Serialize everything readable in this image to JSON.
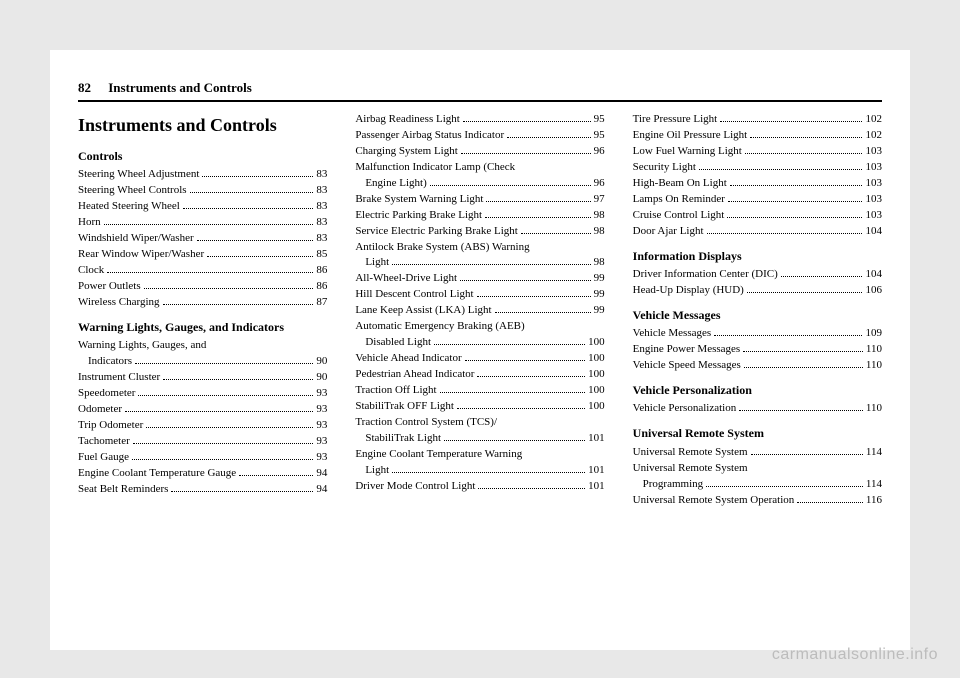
{
  "header": {
    "page_num": "82",
    "running_title": "Instruments and Controls"
  },
  "chapter_title": "Instruments and Controls",
  "watermark": "carmanualsonline.info",
  "sections": [
    {
      "heading": "Controls",
      "entries": [
        {
          "label": "Steering Wheel Adjustment",
          "page": "83",
          "indent": 0
        },
        {
          "label": "Steering Wheel Controls",
          "page": "83",
          "indent": 0
        },
        {
          "label": "Heated Steering Wheel",
          "page": "83",
          "indent": 0
        },
        {
          "label": "Horn",
          "page": "83",
          "indent": 0
        },
        {
          "label": "Windshield Wiper/Washer",
          "page": "83",
          "indent": 0
        },
        {
          "label": "Rear Window Wiper/Washer",
          "page": "85",
          "indent": 0
        },
        {
          "label": "Clock",
          "page": "86",
          "indent": 0
        },
        {
          "label": "Power Outlets",
          "page": "86",
          "indent": 0
        },
        {
          "label": "Wireless Charging",
          "page": "87",
          "indent": 0
        }
      ]
    },
    {
      "heading": "Warning Lights, Gauges, and Indicators",
      "entries": [
        {
          "label": "Warning Lights, Gauges, and",
          "page": "",
          "indent": 0,
          "nodots": true
        },
        {
          "label": "Indicators",
          "page": "90",
          "indent": 1
        },
        {
          "label": "Instrument Cluster",
          "page": "90",
          "indent": 0
        },
        {
          "label": "Speedometer",
          "page": "93",
          "indent": 0
        },
        {
          "label": "Odometer",
          "page": "93",
          "indent": 0
        },
        {
          "label": "Trip Odometer",
          "page": "93",
          "indent": 0
        },
        {
          "label": "Tachometer",
          "page": "93",
          "indent": 0
        },
        {
          "label": "Fuel Gauge",
          "page": "93",
          "indent": 0
        },
        {
          "label": "Engine Coolant Temperature Gauge",
          "page": "94",
          "indent": 0
        },
        {
          "label": "Seat Belt Reminders",
          "page": "94",
          "indent": 0
        },
        {
          "label": "Airbag Readiness Light",
          "page": "95",
          "indent": 0
        },
        {
          "label": "Passenger Airbag Status Indicator",
          "page": "95",
          "indent": 0
        },
        {
          "label": "Charging System Light",
          "page": "96",
          "indent": 0
        },
        {
          "label": "Malfunction Indicator Lamp (Check",
          "page": "",
          "indent": 0,
          "nodots": true
        },
        {
          "label": "Engine Light)",
          "page": "96",
          "indent": 1
        },
        {
          "label": "Brake System Warning Light",
          "page": "97",
          "indent": 0
        },
        {
          "label": "Electric Parking Brake Light",
          "page": "98",
          "indent": 0
        },
        {
          "label": "Service Electric Parking Brake Light",
          "page": "98",
          "indent": 0
        },
        {
          "label": "Antilock Brake System (ABS) Warning",
          "page": "",
          "indent": 0,
          "nodots": true
        },
        {
          "label": "Light",
          "page": "98",
          "indent": 1
        },
        {
          "label": "All-Wheel-Drive Light",
          "page": "99",
          "indent": 0
        },
        {
          "label": "Hill Descent Control Light",
          "page": "99",
          "indent": 0
        },
        {
          "label": "Lane Keep Assist (LKA) Light",
          "page": "99",
          "indent": 0
        },
        {
          "label": "Automatic Emergency Braking (AEB)",
          "page": "",
          "indent": 0,
          "nodots": true
        },
        {
          "label": "Disabled Light",
          "page": "100",
          "indent": 1
        },
        {
          "label": "Vehicle Ahead Indicator",
          "page": "100",
          "indent": 0
        },
        {
          "label": "Pedestrian Ahead Indicator",
          "page": "100",
          "indent": 0
        },
        {
          "label": "Traction Off Light",
          "page": "100",
          "indent": 0
        },
        {
          "label": "StabiliTrak OFF Light",
          "page": "100",
          "indent": 0
        },
        {
          "label": "Traction Control System (TCS)/",
          "page": "",
          "indent": 0,
          "nodots": true
        },
        {
          "label": "StabiliTrak Light",
          "page": "101",
          "indent": 1
        },
        {
          "label": "Engine Coolant Temperature Warning",
          "page": "",
          "indent": 0,
          "nodots": true
        },
        {
          "label": "Light",
          "page": "101",
          "indent": 1
        },
        {
          "label": "Driver Mode Control Light",
          "page": "101",
          "indent": 0
        },
        {
          "label": "Tire Pressure Light",
          "page": "102",
          "indent": 0
        },
        {
          "label": "Engine Oil Pressure Light",
          "page": "102",
          "indent": 0
        },
        {
          "label": "Low Fuel Warning Light",
          "page": "103",
          "indent": 0
        },
        {
          "label": "Security Light",
          "page": "103",
          "indent": 0
        },
        {
          "label": "High-Beam On Light",
          "page": "103",
          "indent": 0
        },
        {
          "label": "Lamps On Reminder",
          "page": "103",
          "indent": 0
        },
        {
          "label": "Cruise Control Light",
          "page": "103",
          "indent": 0
        },
        {
          "label": "Door Ajar Light",
          "page": "104",
          "indent": 0
        }
      ]
    },
    {
      "heading": "Information Displays",
      "entries": [
        {
          "label": "Driver Information Center (DIC)",
          "page": "104",
          "indent": 0
        },
        {
          "label": "Head-Up Display (HUD)",
          "page": "106",
          "indent": 0
        }
      ]
    },
    {
      "heading": "Vehicle Messages",
      "entries": [
        {
          "label": "Vehicle Messages",
          "page": "109",
          "indent": 0
        },
        {
          "label": "Engine Power Messages",
          "page": "110",
          "indent": 0
        },
        {
          "label": "Vehicle Speed Messages",
          "page": "110",
          "indent": 0
        }
      ]
    },
    {
      "heading": "Vehicle Personalization",
      "entries": [
        {
          "label": "Vehicle Personalization",
          "page": "110",
          "indent": 0
        }
      ]
    },
    {
      "heading": "Universal Remote System",
      "entries": [
        {
          "label": "Universal Remote System",
          "page": "114",
          "indent": 0
        },
        {
          "label": "Universal Remote System",
          "page": "",
          "indent": 0,
          "nodots": true
        },
        {
          "label": "Programming",
          "page": "114",
          "indent": 1
        },
        {
          "label": "Universal Remote System Operation",
          "page": "116",
          "indent": 0
        }
      ]
    }
  ]
}
